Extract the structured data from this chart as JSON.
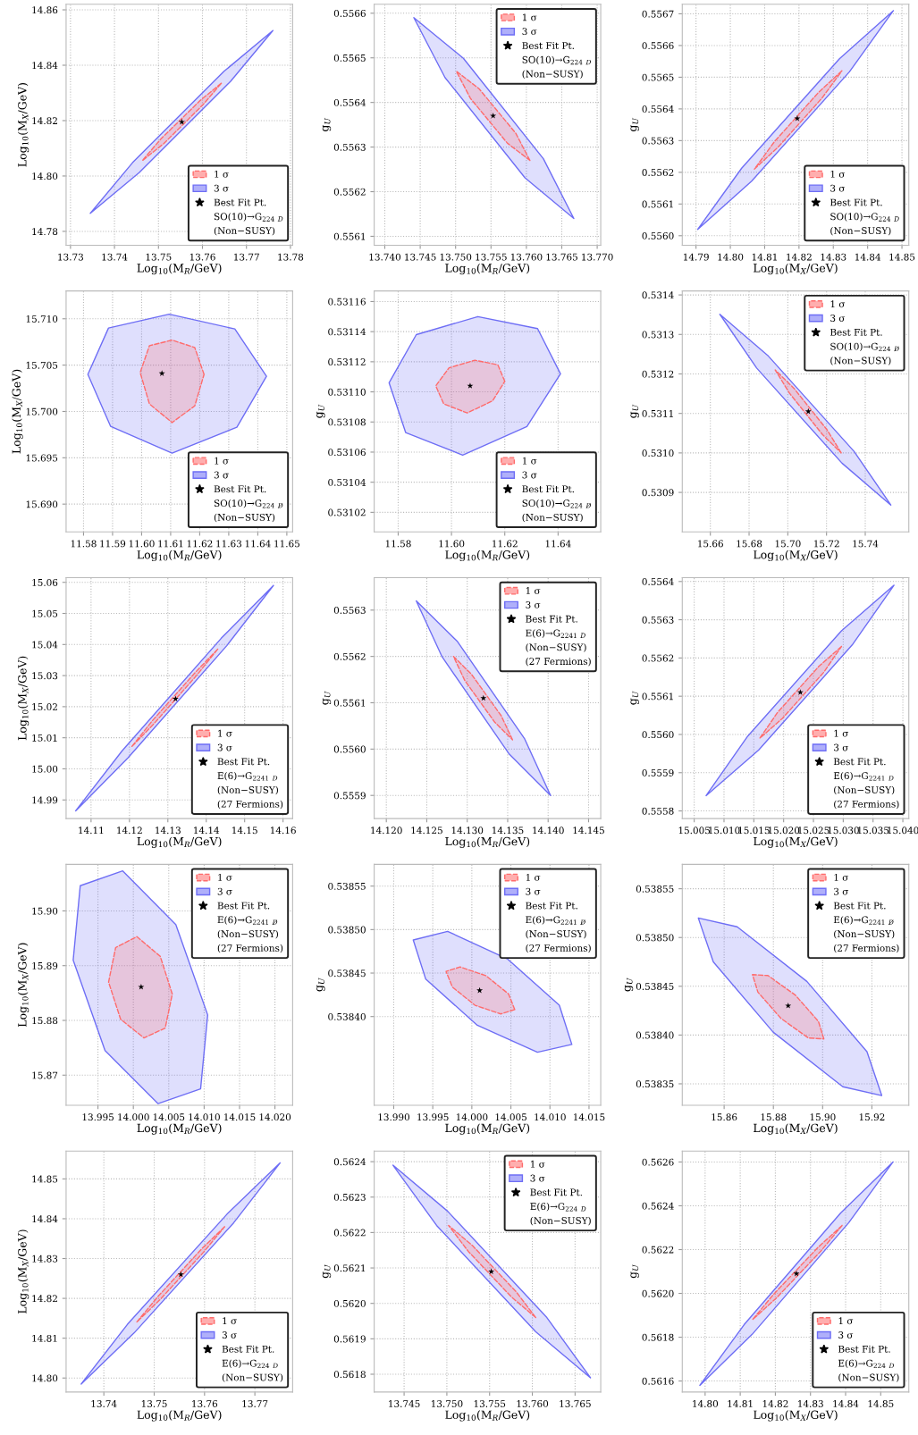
{
  "chart_data": [
    {
      "type": "scatter",
      "xlabel": "Log$_{10}$(M$_{R}$/GeV)",
      "ylabel": "Log$_{10}$(M$_{X}$/GeV)",
      "xlim": [
        13.729,
        13.7805
      ],
      "ylim": [
        14.775,
        14.862
      ],
      "xticks": [
        13.73,
        13.74,
        13.75,
        13.76,
        13.77,
        13.78
      ],
      "yticks": [
        14.78,
        {
          "value": 14.8,
          "label": "14.80"
        },
        14.82,
        14.84,
        14.86
      ],
      "grid": true,
      "legend": "bottom right",
      "annotations": [
        "SO(10)→G$_{224}$ $_{D}$",
        "(Non−SUSY)"
      ],
      "series": [
        {
          "name": "1 σ",
          "type": "area",
          "color": "#ff6b6b",
          "line_style": "dashed",
          "x": [
            13.7643,
            13.7595,
            13.7505,
            13.7463,
            13.7512,
            13.7601
          ],
          "values": [
            14.8335,
            14.8273,
            14.8133,
            14.8055,
            14.8117,
            14.8257
          ]
        },
        {
          "name": "3 σ",
          "type": "area",
          "color": "#6e6ef5",
          "line_style": "solid",
          "x": [
            13.776,
            13.7649,
            13.7441,
            13.7345,
            13.7456,
            13.7664
          ],
          "values": [
            14.8525,
            14.8378,
            14.8048,
            14.7865,
            14.8012,
            14.8342
          ]
        },
        {
          "name": "Best Fit Pt.",
          "type": "scatter",
          "color": "#000000",
          "marker": "star",
          "x": [
            13.7553
          ],
          "values": [
            14.8195
          ]
        }
      ]
    },
    {
      "type": "scatter",
      "xlabel": "Log$_{10}$(M$_{R}$/GeV)",
      "ylabel": "g$_{U}$",
      "xlim": [
        13.7385,
        13.7705
      ],
      "ylim": [
        0.55608,
        0.55662
      ],
      "xticks": [
        {
          "value": 13.74,
          "label": "13.740"
        },
        13.745,
        {
          "value": 13.75,
          "label": "13.750"
        },
        13.755,
        {
          "value": 13.76,
          "label": "13.760"
        },
        13.765,
        {
          "value": 13.77,
          "label": "13.770"
        }
      ],
      "yticks": [
        0.5561,
        0.5562,
        0.5563,
        0.5564,
        0.5565,
        0.5566
      ],
      "grid": true,
      "legend": "top right",
      "annotations": [
        "SO(10)→G$_{224}$ $_{D}$",
        "(Non−SUSY)"
      ],
      "series": [
        {
          "name": "1 σ",
          "type": "area",
          "color": "#ff6b6b",
          "line_style": "dashed",
          "x": [
            13.7605,
            13.7585,
            13.7533,
            13.7501,
            13.7521,
            13.7573
          ],
          "values": [
            0.55627,
            0.556331,
            0.556431,
            0.55647,
            0.556409,
            0.556309
          ]
        },
        {
          "name": "3 σ",
          "type": "area",
          "color": "#6e6ef5",
          "line_style": "solid",
          "x": [
            13.7667,
            13.7624,
            13.7511,
            13.7441,
            13.7485,
            13.7598
          ],
          "values": [
            0.55614,
            0.556274,
            0.556499,
            0.55659,
            0.556456,
            0.556231
          ]
        },
        {
          "name": "Best Fit Pt.",
          "type": "scatter",
          "color": "#000000",
          "marker": "star",
          "x": [
            13.7553
          ],
          "values": [
            0.55637
          ]
        }
      ]
    },
    {
      "type": "scatter",
      "xlabel": "Log$_{10}$(M$_{X}$/GeV)",
      "ylabel": "g$_{U}$",
      "xlim": [
        14.786,
        14.852
      ],
      "ylim": [
        0.55597,
        0.55673
      ],
      "xticks": [
        14.79,
        {
          "value": 14.8,
          "label": "14.80"
        },
        14.81,
        14.82,
        14.83,
        14.84,
        14.85
      ],
      "yticks": [
        {
          "value": 0.556,
          "label": "0.5560"
        },
        0.5561,
        0.5562,
        0.5563,
        0.5564,
        0.5565,
        0.5566,
        0.5567
      ],
      "grid": true,
      "legend": "bottom right",
      "annotations": [
        "SO(10)→G$_{224}$ $_{D}$",
        "(Non−SUSY)"
      ],
      "series": [
        {
          "name": "1 σ",
          "type": "area",
          "color": "#ff6b6b",
          "line_style": "dashed",
          "x": [
            14.8325,
            14.8256,
            14.8128,
            14.807,
            14.8139,
            14.8267
          ],
          "values": [
            0.55652,
            0.556451,
            0.556296,
            0.55621,
            0.556279,
            0.556434
          ]
        },
        {
          "name": "3 σ",
          "type": "area",
          "color": "#6e6ef5",
          "line_style": "solid",
          "x": [
            14.8475,
            14.8318,
            14.8033,
            14.7905,
            14.8062,
            14.8347
          ],
          "values": [
            0.55671,
            0.556558,
            0.556213,
            0.55602,
            0.556172,
            0.556517
          ]
        },
        {
          "name": "Best Fit Pt.",
          "type": "scatter",
          "color": "#000000",
          "marker": "star",
          "x": [
            14.8195
          ],
          "values": [
            0.55637
          ]
        }
      ]
    },
    {
      "type": "scatter",
      "xlabel": "Log$_{10}$(M$_{R}$/GeV)",
      "ylabel": "Log$_{10}$(M$_{X}$/GeV)",
      "xlim": [
        11.574,
        11.652
      ],
      "ylim": [
        15.687,
        15.713
      ],
      "xticks": [
        11.58,
        11.59,
        {
          "value": 11.6,
          "label": "11.60"
        },
        11.61,
        11.62,
        11.63,
        11.64,
        11.65
      ],
      "yticks": [
        {
          "value": 15.69,
          "label": "15.690"
        },
        15.695,
        {
          "value": 15.7,
          "label": "15.700"
        },
        15.705,
        {
          "value": 15.71,
          "label": "15.710"
        }
      ],
      "grid": true,
      "legend": "bottom right",
      "annotations": [
        "SO(10)→G$_{224}$ $_{D̸}$",
        "(Non−SUSY)"
      ],
      "series": [
        {
          "name": "1 σ",
          "type": "area",
          "color": "#ff6b6b",
          "line_style": "dashed",
          "x": [
            11.6215,
            11.6183,
            11.6105,
            11.6027,
            11.5995,
            11.6027,
            11.6105,
            11.6183
          ],
          "values": [
            15.704,
            15.7069,
            15.7077,
            15.7071,
            15.7042,
            15.7008,
            15.6988,
            15.7006
          ]
        },
        {
          "name": "3 σ",
          "type": "area",
          "color": "#6e6ef5",
          "line_style": "solid",
          "x": [
            11.643,
            11.6321,
            11.6095,
            11.5886,
            11.5815,
            11.5893,
            11.6105,
            11.6328
          ],
          "values": [
            15.7038,
            15.7089,
            15.7105,
            15.709,
            15.704,
            15.6984,
            15.6955,
            15.6983
          ]
        },
        {
          "name": "Best Fit Pt.",
          "type": "scatter",
          "color": "#000000",
          "marker": "star",
          "x": [
            11.607
          ],
          "values": [
            15.7041
          ]
        }
      ]
    },
    {
      "type": "scatter",
      "xlabel": "Log$_{10}$(M$_{R}$/GeV)",
      "ylabel": "g$_{U}$",
      "xlim": [
        11.571,
        11.656
      ],
      "ylim": [
        0.531007,
        0.531167
      ],
      "xticks": [
        11.58,
        {
          "value": 11.6,
          "label": "11.60"
        },
        11.62,
        11.64
      ],
      "yticks": [
        0.53102,
        0.53104,
        0.53106,
        0.53108,
        {
          "value": 0.5311,
          "label": "0.53110"
        },
        0.53112,
        0.53114,
        0.53116
      ],
      "grid": true,
      "legend": "bottom right",
      "annotations": [
        "SO(10)→G$_{224}$ $_{D̸}$",
        "(Non−SUSY)"
      ],
      "series": [
        {
          "name": "1 σ",
          "type": "area",
          "color": "#ff6b6b",
          "line_style": "dashed",
          "x": [
            11.62,
            11.6174,
            11.6088,
            11.5991,
            11.5941,
            11.5971,
            11.6059,
            11.6154
          ],
          "values": [
            0.531107,
            0.531118,
            0.531121,
            0.531116,
            0.531104,
            0.531092,
            0.531086,
            0.531094
          ]
        },
        {
          "name": "3 σ",
          "type": "area",
          "color": "#6e6ef5",
          "line_style": "solid",
          "x": [
            11.6409,
            11.6323,
            11.6099,
            11.5868,
            11.5766,
            11.5828,
            11.6042,
            11.6283
          ],
          "values": [
            0.531112,
            0.531142,
            0.53115,
            0.531138,
            0.531106,
            0.531073,
            0.531058,
            0.531077
          ]
        },
        {
          "name": "Best Fit Pt.",
          "type": "scatter",
          "color": "#000000",
          "marker": "star",
          "x": [
            11.607
          ],
          "values": [
            0.531104
          ]
        }
      ]
    },
    {
      "type": "scatter",
      "xlabel": "Log$_{10}$(M$_{X}$/GeV)",
      "ylabel": "g$_{U}$",
      "xlim": [
        15.6455,
        15.7625
      ],
      "ylim": [
        0.5308,
        0.53141
      ],
      "xticks": [
        15.66,
        15.68,
        {
          "value": 15.7,
          "label": "15.70"
        },
        15.72,
        15.74
      ],
      "yticks": [
        0.5309,
        {
          "value": 0.531,
          "label": "0.5310"
        },
        0.5311,
        0.5312,
        0.5313,
        0.5314
      ],
      "grid": true,
      "legend": "top right",
      "annotations": [
        "SO(10)→G$_{224}$ $_{D̸}$",
        "(Non−SUSY)"
      ],
      "series": [
        {
          "name": "1 σ",
          "type": "area",
          "color": "#ff6b6b",
          "line_style": "dashed",
          "x": [
            15.7276,
            15.7202,
            15.7031,
            15.6935,
            15.7009,
            15.718
          ],
          "values": [
            0.531,
            0.531059,
            0.531164,
            0.53121,
            0.531151,
            0.531046
          ]
        },
        {
          "name": "3 σ",
          "type": "area",
          "color": "#6e6ef5",
          "line_style": "solid",
          "x": [
            15.7532,
            15.7342,
            15.69,
            15.6649,
            15.6839,
            15.728
          ],
          "values": [
            0.530868,
            0.531004,
            0.531245,
            0.531351,
            0.531215,
            0.530974
          ]
        },
        {
          "name": "Best Fit Pt.",
          "type": "scatter",
          "color": "#000000",
          "marker": "star",
          "x": [
            15.7106
          ],
          "values": [
            0.531105
          ]
        }
      ]
    },
    {
      "type": "scatter",
      "xlabel": "Log$_{10}$(M$_{R}$/GeV)",
      "ylabel": "Log$_{10}$(M$_{X}$/GeV)",
      "xlim": [
        14.1035,
        14.1625
      ],
      "ylim": [
        14.984,
        15.0615
      ],
      "xticks": [
        14.11,
        14.12,
        14.13,
        14.14,
        14.15,
        14.16
      ],
      "yticks": [
        14.99,
        {
          "value": 15.0,
          "label": "15.00"
        },
        15.01,
        15.02,
        15.03,
        15.04,
        15.05,
        15.06
      ],
      "grid": true,
      "legend": "bottom right",
      "annotations": [
        "E(6)→G$_{2241}$ $_{D}$",
        "(Non−SUSY)",
        "(27 Fermions)"
      ],
      "series": [
        {
          "name": "1 σ",
          "type": "area",
          "color": "#ff6b6b",
          "line_style": "dashed",
          "x": [
            14.143,
            14.1372,
            14.1259,
            14.1205,
            14.1263,
            14.1376
          ],
          "values": [
            15.0385,
            15.0311,
            15.0154,
            15.007,
            15.0144,
            15.0302
          ]
        },
        {
          "name": "3 σ",
          "type": "area",
          "color": "#6e6ef5",
          "line_style": "solid",
          "x": [
            14.1575,
            14.1439,
            14.1181,
            14.106,
            14.1196,
            14.1454
          ],
          "values": [
            15.059,
            15.042,
            15.0058,
            14.9865,
            15.0035,
            15.0397
          ]
        },
        {
          "name": "Best Fit Pt.",
          "type": "scatter",
          "color": "#000000",
          "marker": "star",
          "x": [
            14.132
          ],
          "values": [
            15.0225
          ]
        }
      ]
    },
    {
      "type": "scatter",
      "xlabel": "Log$_{10}$(M$_{R}$/GeV)",
      "ylabel": "g$_{U}$",
      "xlim": [
        14.1185,
        14.1465
      ],
      "ylim": [
        0.55585,
        0.55637
      ],
      "xticks": [
        {
          "value": 14.12,
          "label": "14.120"
        },
        14.125,
        {
          "value": 14.13,
          "label": "14.130"
        },
        14.135,
        {
          "value": 14.14,
          "label": "14.140"
        },
        14.145
      ],
      "yticks": [
        0.5559,
        {
          "value": 0.556,
          "label": "0.5560"
        },
        0.5561,
        0.5562,
        0.5563
      ],
      "grid": true,
      "legend": "top right",
      "annotations": [
        "E(6)→G$_{2241}$ $_{D}$",
        "(Non−SUSY)",
        "(27 Fermions)"
      ],
      "series": [
        {
          "name": "1 σ",
          "type": "area",
          "color": "#ff6b6b",
          "line_style": "dashed",
          "x": [
            14.1356,
            14.1342,
            14.1305,
            14.1283,
            14.1297,
            14.1334
          ],
          "values": [
            0.55602,
            0.556072,
            0.556162,
            0.5562,
            0.556148,
            0.556058
          ]
        },
        {
          "name": "3 σ",
          "type": "area",
          "color": "#6e6ef5",
          "line_style": "solid",
          "x": [
            14.1403,
            14.1371,
            14.1288,
            14.1237,
            14.1269,
            14.1352
          ],
          "values": [
            0.5559,
            0.556022,
            0.556232,
            0.55632,
            0.556199,
            0.555989
          ]
        },
        {
          "name": "Best Fit Pt.",
          "type": "scatter",
          "color": "#000000",
          "marker": "star",
          "x": [
            14.132
          ],
          "values": [
            0.55611
          ]
        }
      ]
    },
    {
      "type": "scatter",
      "xlabel": "Log$_{10}$(M$_{X}$/GeV)",
      "ylabel": "g$_{U}$",
      "xlim": [
        15.003,
        15.041
      ],
      "ylim": [
        0.55578,
        0.55641
      ],
      "xticks": [
        15.005,
        {
          "value": 15.01,
          "label": "15.010"
        },
        15.015,
        {
          "value": 15.02,
          "label": "15.020"
        },
        15.025,
        {
          "value": 15.03,
          "label": "15.030"
        },
        15.035,
        {
          "value": 15.04,
          "label": "15.040"
        }
      ],
      "yticks": [
        0.5558,
        0.5559,
        {
          "value": 0.556,
          "label": "0.5560"
        },
        0.5561,
        0.5562,
        0.5563,
        0.5564
      ],
      "grid": true,
      "legend": "bottom right",
      "annotations": [
        "E(6)→G$_{2241}$ $_{D}$",
        "(Non−SUSY)",
        "(27 Fermions)"
      ],
      "series": [
        {
          "name": "1 σ",
          "type": "area",
          "color": "#ff6b6b",
          "line_style": "dashed",
          "x": [
            15.0297,
            15.0259,
            15.019,
            15.016,
            15.0198,
            15.0267
          ],
          "values": [
            0.55623,
            0.556178,
            0.556058,
            0.55599,
            0.556042,
            0.556162
          ]
        },
        {
          "name": "3 σ",
          "type": "area",
          "color": "#6e6ef5",
          "line_style": "solid",
          "x": [
            15.0385,
            15.0297,
            15.014,
            15.007,
            15.0158,
            15.0315
          ],
          "values": [
            0.55639,
            0.556271,
            0.555996,
            0.55584,
            0.555959,
            0.556234
          ]
        },
        {
          "name": "Best Fit Pt.",
          "type": "scatter",
          "color": "#000000",
          "marker": "star",
          "x": [
            15.0228
          ],
          "values": [
            0.55611
          ]
        }
      ]
    },
    {
      "type": "scatter",
      "xlabel": "Log$_{10}$(M$_{R}$/GeV)",
      "ylabel": "Log$_{10}$(M$_{X}$/GeV)",
      "xlim": [
        13.9905,
        14.0225
      ],
      "ylim": [
        15.8645,
        15.9085
      ],
      "xticks": [
        13.995,
        {
          "value": 14.0,
          "label": "14.000"
        },
        14.005,
        {
          "value": 14.01,
          "label": "14.010"
        },
        14.015,
        {
          "value": 14.02,
          "label": "14.020"
        }
      ],
      "yticks": [
        15.87,
        15.88,
        15.89,
        {
          "value": 15.9,
          "label": "15.90"
        }
      ],
      "grid": true,
      "legend": "top right",
      "annotations": [
        "E(6)→G$_{2241}$ $_{D̸}$",
        "(Non−SUSY)",
        "(27 Fermions)"
      ],
      "series": [
        {
          "name": "1 σ",
          "type": "area",
          "color": "#ff6b6b",
          "line_style": "dashed",
          "x": [
            14.0055,
            14.0038,
            14.0005,
            13.9975,
            13.9965,
            13.9982,
            14.0015,
            14.0045
          ],
          "values": [
            15.8848,
            15.8917,
            15.8953,
            15.8933,
            15.887,
            15.8802,
            15.8768,
            15.8786
          ]
        },
        {
          "name": "3 σ",
          "type": "area",
          "color": "#6e6ef5",
          "line_style": "solid",
          "x": [
            14.0105,
            14.006,
            13.9985,
            13.9925,
            13.9915,
            13.996,
            14.0035,
            14.0095
          ],
          "values": [
            15.881,
            15.8975,
            15.9073,
            15.9046,
            15.891,
            15.8745,
            15.8648,
            15.8675
          ]
        },
        {
          "name": "Best Fit Pt.",
          "type": "scatter",
          "color": "#000000",
          "marker": "star",
          "x": [
            14.0011
          ],
          "values": [
            15.8861
          ]
        }
      ]
    },
    {
      "type": "scatter",
      "xlabel": "Log$_{10}$(M$_{R}$/GeV)",
      "ylabel": "g$_{U}$",
      "xlim": [
        13.9875,
        14.0165
      ],
      "ylim": [
        0.538298,
        0.538575
      ],
      "xticks": [
        {
          "value": 13.99,
          "label": "13.990"
        },
        13.995,
        {
          "value": 14.0,
          "label": "14.000"
        },
        14.005,
        {
          "value": 14.01,
          "label": "14.010"
        },
        14.015
      ],
      "yticks": [
        {
          "value": 0.5384,
          "label": "0.53840"
        },
        0.53845,
        {
          "value": 0.5385,
          "label": "0.53850"
        },
        0.53855
      ],
      "grid": true,
      "legend": "top right",
      "annotations": [
        "E(6)→G$_{2241}$ $_{D̸}$",
        "(Non−SUSY)",
        "(27 Fermions)"
      ],
      "series": [
        {
          "name": "1 σ",
          "type": "area",
          "color": "#ff6b6b",
          "line_style": "dashed",
          "x": [
            14.0055,
            14.0047,
            14.0018,
            13.9985,
            13.9967,
            13.9975,
            14.0004,
            14.0037
          ],
          "values": [
            0.538408,
            0.538426,
            0.538447,
            0.538457,
            0.538452,
            0.538434,
            0.538413,
            0.538403
          ]
        },
        {
          "name": "3 σ",
          "type": "area",
          "color": "#6e6ef5",
          "line_style": "solid",
          "x": [
            14.0128,
            14.0112,
            14.0046,
            13.9969,
            13.9925,
            13.9941,
            14.0007,
            14.0084
          ],
          "values": [
            0.538368,
            0.538413,
            0.538466,
            0.538498,
            0.538488,
            0.538443,
            0.53839,
            0.538359
          ]
        },
        {
          "name": "Best Fit Pt.",
          "type": "scatter",
          "color": "#000000",
          "marker": "star",
          "x": [
            14.001
          ],
          "values": [
            0.53843
          ]
        }
      ]
    },
    {
      "type": "scatter",
      "xlabel": "Log$_{10}$(M$_{X}$/GeV)",
      "ylabel": "g$_{U}$",
      "xlim": [
        15.843,
        15.935
      ],
      "ylim": [
        0.538328,
        0.538575
      ],
      "xticks": [
        15.86,
        15.88,
        {
          "value": 15.9,
          "label": "15.90"
        },
        15.92
      ],
      "yticks": [
        0.53835,
        {
          "value": 0.5384,
          "label": "0.53840"
        },
        0.53845,
        {
          "value": 0.5385,
          "label": "0.53850"
        },
        0.53855
      ],
      "grid": true,
      "legend": "top right",
      "annotations": [
        "E(6)→G$_{2241}$ $_{D̸}$",
        "(Non−SUSY)",
        "(27 Fermions)"
      ],
      "series": [
        {
          "name": "1 σ",
          "type": "area",
          "color": "#ff6b6b",
          "line_style": "dashed",
          "x": [
            15.9005,
            15.8983,
            15.8889,
            15.8778,
            15.8715,
            15.8737,
            15.8831,
            15.8942
          ],
          "values": [
            0.538396,
            0.538414,
            0.538441,
            0.538461,
            0.538462,
            0.538444,
            0.538417,
            0.538397
          ]
        },
        {
          "name": "3 σ",
          "type": "area",
          "color": "#6e6ef5",
          "line_style": "solid",
          "x": [
            15.924,
            15.918,
            15.8936,
            15.8653,
            15.8495,
            15.8556,
            15.8799,
            15.9082
          ],
          "values": [
            0.538338,
            0.538383,
            0.538455,
            0.538511,
            0.53852,
            0.538475,
            0.538403,
            0.538347
          ]
        },
        {
          "name": "Best Fit Pt.",
          "type": "scatter",
          "color": "#000000",
          "marker": "star",
          "x": [
            15.886
          ],
          "values": [
            0.53843
          ]
        }
      ]
    },
    {
      "type": "scatter",
      "xlabel": "Log$_{10}$(M$_{R}$/GeV)",
      "ylabel": "Log$_{10}$(M$_{X}$/GeV)",
      "xlim": [
        13.7325,
        13.7775
      ],
      "ylim": [
        14.7965,
        14.857
      ],
      "xticks": [
        13.74,
        13.75,
        13.76,
        13.77
      ],
      "yticks": [
        {
          "value": 14.8,
          "label": "14.80"
        },
        14.81,
        14.82,
        14.83,
        14.84,
        14.85
      ],
      "grid": true,
      "legend": "bottom right",
      "annotations": [
        "E(6)→G$_{224}$ $_{D}$",
        "(Non−SUSY)"
      ],
      "series": [
        {
          "name": "1 σ",
          "type": "area",
          "color": "#ff6b6b",
          "line_style": "dashed",
          "x": [
            13.764,
            13.7594,
            13.7507,
            13.7465,
            13.7511,
            13.7598
          ],
          "values": [
            14.838,
            14.8324,
            14.8204,
            14.814,
            14.8196,
            14.8316
          ]
        },
        {
          "name": "3 σ",
          "type": "area",
          "color": "#6e6ef5",
          "line_style": "solid",
          "x": [
            13.775,
            13.7645,
            13.7447,
            13.7355,
            13.746,
            13.7658
          ],
          "values": [
            14.854,
            14.8412,
            14.8135,
            14.7985,
            14.8113,
            14.839
          ]
        },
        {
          "name": "Best Fit Pt.",
          "type": "scatter",
          "color": "#000000",
          "marker": "star",
          "x": [
            13.7553
          ],
          "values": [
            14.826
          ]
        }
      ]
    },
    {
      "type": "scatter",
      "xlabel": "Log$_{10}$(M$_{R}$/GeV)",
      "ylabel": "g$_{U}$",
      "xlim": [
        13.7415,
        13.768
      ],
      "ylim": [
        0.56175,
        0.56243
      ],
      "xticks": [
        13.745,
        {
          "value": 13.75,
          "label": "13.750"
        },
        13.755,
        {
          "value": 13.76,
          "label": "13.760"
        },
        13.765
      ],
      "yticks": [
        0.5618,
        0.5619,
        {
          "value": 0.562,
          "label": "0.5620"
        },
        0.5621,
        0.5622,
        0.5623,
        0.5624
      ],
      "grid": true,
      "legend": "top right",
      "annotations": [
        "E(6)→G$_{224}$ $_{D}$",
        "(Non−SUSY)"
      ],
      "series": [
        {
          "name": "1 σ",
          "type": "area",
          "color": "#ff6b6b",
          "line_style": "dashed",
          "x": [
            13.7604,
            13.7581,
            13.753,
            13.7502,
            13.7525,
            13.7576
          ],
          "values": [
            0.56196,
            0.562033,
            0.562163,
            0.56222,
            0.562147,
            0.562017
          ]
        },
        {
          "name": "3 σ",
          "type": "area",
          "color": "#6e6ef5",
          "line_style": "solid",
          "x": [
            13.7668,
            13.7617,
            13.7501,
            13.7437,
            13.7488,
            13.7604
          ],
          "values": [
            0.56179,
            0.56196,
            0.56226,
            0.56239,
            0.56222,
            0.56192
          ]
        },
        {
          "name": "Best Fit Pt.",
          "type": "scatter",
          "color": "#000000",
          "marker": "star",
          "x": [
            13.7552
          ],
          "values": [
            0.56209
          ]
        }
      ]
    },
    {
      "type": "scatter",
      "xlabel": "Log$_{10}$(M$_{X}$/GeV)",
      "ylabel": "g$_{U}$",
      "xlim": [
        14.7935,
        14.858
      ],
      "ylim": [
        0.56155,
        0.56265
      ],
      "xticks": [
        {
          "value": 14.8,
          "label": "14.80"
        },
        14.81,
        14.82,
        14.83,
        14.84,
        14.85
      ],
      "yticks": [
        0.5616,
        0.5618,
        {
          "value": 0.562,
          "label": "0.5620"
        },
        0.5622,
        0.5624,
        0.5626
      ],
      "grid": true,
      "legend": "bottom right",
      "annotations": [
        "E(6)→G$_{224}$ $_{D}$",
        "(Non−SUSY)"
      ],
      "series": [
        {
          "name": "1 σ",
          "type": "area",
          "color": "#ff6b6b",
          "line_style": "dashed",
          "x": [
            14.839,
            14.8322,
            14.8195,
            14.8135,
            14.8203,
            14.833
          ],
          "values": [
            0.56231,
            0.562211,
            0.561996,
            0.56188,
            0.561979,
            0.562194
          ]
        },
        {
          "name": "3 σ",
          "type": "area",
          "color": "#6e6ef5",
          "line_style": "solid",
          "x": [
            14.8535,
            14.8386,
            14.8111,
            14.7985,
            14.8134,
            14.8409
          ],
          "values": [
            0.5626,
            0.562367,
            0.561857,
            0.56158,
            0.561813,
            0.562323
          ]
        },
        {
          "name": "Best Fit Pt.",
          "type": "scatter",
          "color": "#000000",
          "marker": "star",
          "x": [
            14.826
          ],
          "values": [
            0.56209
          ]
        }
      ]
    }
  ]
}
